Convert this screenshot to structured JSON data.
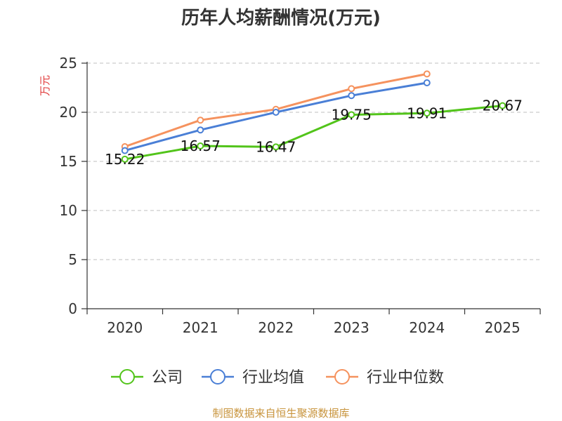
{
  "chart_data": {
    "type": "line",
    "title": "历年人均薪酬情况(万元)",
    "ylabel": "万元",
    "xlabel": "",
    "categories": [
      "2020",
      "2021",
      "2022",
      "2023",
      "2024",
      "2025"
    ],
    "ylim": [
      0,
      25
    ],
    "yticks": [
      0,
      5,
      10,
      15,
      20,
      25
    ],
    "grid": true,
    "legend_position": "bottom",
    "series": [
      {
        "name": "公司",
        "color": "#52c41a",
        "values": [
          15.22,
          16.57,
          16.47,
          19.75,
          19.91,
          20.67
        ],
        "labels": [
          "15.22",
          "16.57",
          "16.47",
          "19.75",
          "19.91",
          "20.67"
        ]
      },
      {
        "name": "行业均值",
        "color": "#4a7fd6",
        "values": [
          16.1,
          18.2,
          20.0,
          21.7,
          23.0,
          null
        ],
        "labels": []
      },
      {
        "name": "行业中位数",
        "color": "#f5925e",
        "values": [
          16.5,
          19.2,
          20.3,
          22.4,
          23.9,
          null
        ],
        "labels": []
      }
    ]
  },
  "footer": {
    "source": "制图数据来自恒生聚源数据库",
    "color": "#c8943c"
  },
  "style": {
    "ylabel_color": "#e03a3a",
    "axis_color": "#333333",
    "grid_color": "#cccccc"
  }
}
